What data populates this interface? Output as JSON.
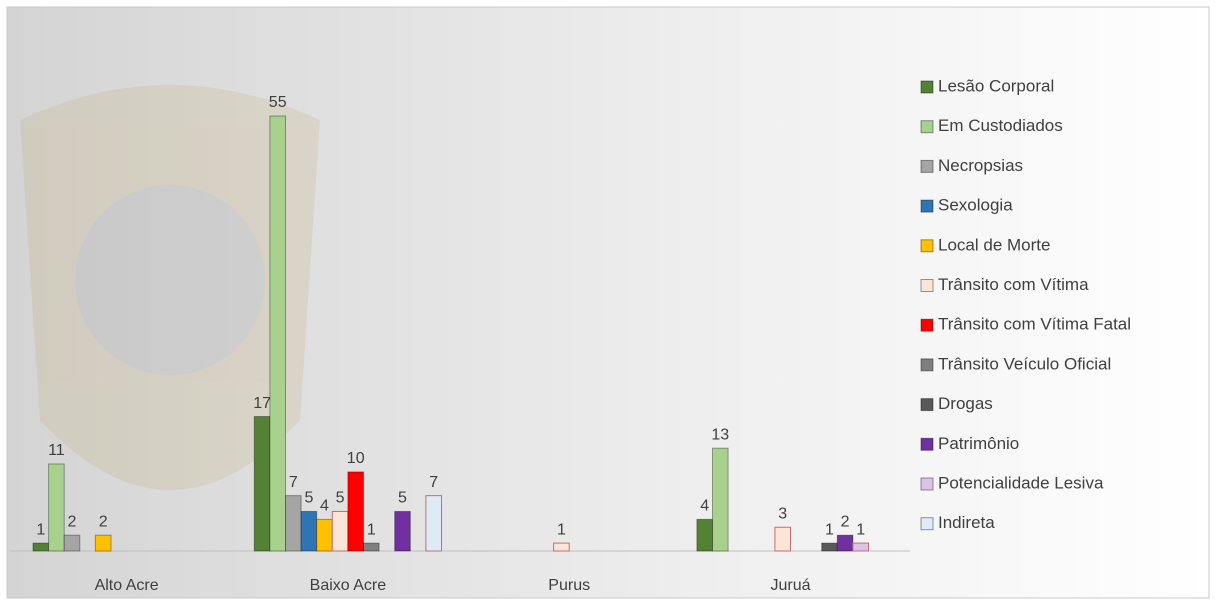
{
  "chart_data": {
    "type": "bar",
    "categories": [
      "Alto Acre",
      "Baixo Acre",
      "Purus",
      "Juruá"
    ],
    "series": [
      {
        "name": "Lesão Corporal",
        "color": "#548235",
        "values": [
          1,
          17,
          null,
          4
        ]
      },
      {
        "name": "Em Custodiados",
        "color": "#a9d18e",
        "values": [
          11,
          55,
          null,
          13
        ]
      },
      {
        "name": "Necropsias",
        "color": "#a5a5a5",
        "values": [
          2,
          7,
          null,
          null
        ]
      },
      {
        "name": "Sexologia",
        "color": "#2e75b6",
        "values": [
          null,
          5,
          null,
          null
        ]
      },
      {
        "name": "Local de Morte",
        "color": "#ffc000",
        "values": [
          2,
          4,
          null,
          null
        ]
      },
      {
        "name": "Trânsito com Vítima",
        "color": "#fbe5d6",
        "values": [
          null,
          5,
          1,
          3
        ]
      },
      {
        "name": "Trânsito com Vítima Fatal",
        "color": "#ff0000",
        "values": [
          null,
          10,
          null,
          null
        ]
      },
      {
        "name": "Trânsito Veículo Oficial",
        "color": "#7f7f7f",
        "values": [
          null,
          1,
          null,
          null
        ]
      },
      {
        "name": "Drogas",
        "color": "#595959",
        "values": [
          null,
          null,
          null,
          1
        ]
      },
      {
        "name": "Patrimônio",
        "color": "#7030a0",
        "values": [
          null,
          5,
          null,
          2
        ]
      },
      {
        "name": "Potencialidade Lesiva",
        "color": "#d9c3e8",
        "values": [
          null,
          null,
          null,
          1
        ]
      },
      {
        "name": "Indireta",
        "color": "#deebf7",
        "values": [
          null,
          7,
          null,
          null
        ]
      }
    ]
  }
}
